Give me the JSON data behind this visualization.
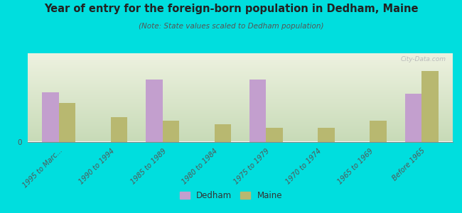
{
  "title": "Year of entry for the foreign-born population in Dedham, Maine",
  "subtitle": "(Note: State values scaled to Dedham population)",
  "categories": [
    "1995 to Marc...",
    "1990 to 1994",
    "1985 to 1989",
    "1980 to 1984",
    "1975 to 1979",
    "1970 to 1974",
    "1965 to 1969",
    "Before 1965"
  ],
  "dedham_values": [
    28,
    0,
    35,
    0,
    35,
    0,
    0,
    27
  ],
  "maine_values": [
    22,
    14,
    12,
    10,
    8,
    8,
    12,
    40
  ],
  "dedham_color": "#c39fce",
  "maine_color": "#b8b870",
  "bg_color_top": "#d8e8c8",
  "bg_color_bottom": "#f0f0e0",
  "outer_bg": "#00dede",
  "bar_width": 0.32,
  "ylim": [
    0,
    50
  ],
  "watermark": "City-Data.com",
  "legend_dedham": "Dedham",
  "legend_maine": "Maine"
}
